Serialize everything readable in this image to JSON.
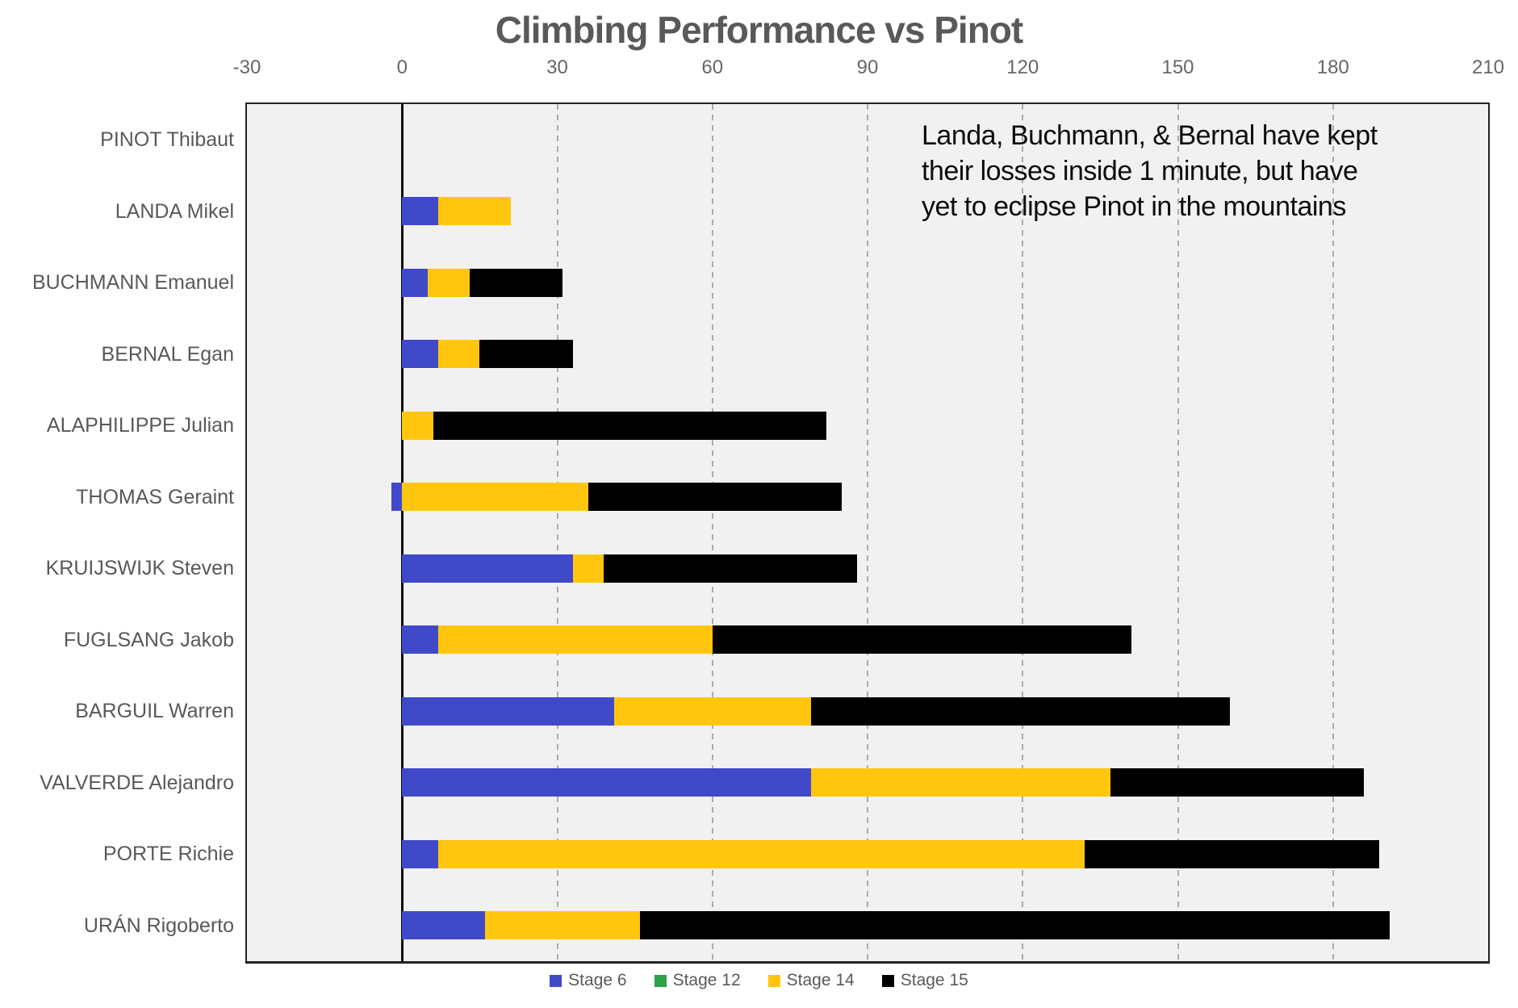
{
  "title": "Climbing Performance vs Pinot",
  "annotation": {
    "lines": [
      "Landa, Buchmann, & Bernal have kept",
      "their losses inside 1 minute, but have",
      "yet to eclipse Pinot in the mountains"
    ]
  },
  "chart_data": {
    "type": "bar",
    "orientation": "horizontal-stacked",
    "title": "Climbing Performance vs Pinot",
    "categories": [
      "PINOT Thibaut",
      "LANDA Mikel",
      "BUCHMANN Emanuel",
      "BERNAL Egan",
      "ALAPHILIPPE Julian",
      "THOMAS Geraint",
      "KRUIJSWIJK Steven",
      "FUGLSANG Jakob",
      "BARGUIL Warren",
      "VALVERDE Alejandro",
      "PORTE Richie",
      "URÁN Rigoberto"
    ],
    "series": [
      {
        "name": "Stage 6",
        "color": "#4049C8",
        "values": [
          0,
          7,
          5,
          7,
          0,
          -2,
          33,
          7,
          41,
          79,
          7,
          16
        ]
      },
      {
        "name": "Stage 12",
        "color": "#2BA148",
        "values": [
          0,
          0,
          0,
          0,
          0,
          0,
          0,
          0,
          0,
          0,
          0,
          0
        ]
      },
      {
        "name": "Stage 14",
        "color": "#FFC60D",
        "values": [
          0,
          14,
          8,
          8,
          6,
          36,
          6,
          53,
          38,
          58,
          125,
          30
        ]
      },
      {
        "name": "Stage 15",
        "color": "#000000",
        "values": [
          0,
          0,
          18,
          18,
          76,
          49,
          49,
          81,
          81,
          49,
          57,
          145
        ]
      }
    ],
    "xlim": [
      -30,
      210
    ],
    "xticks": [
      -30,
      0,
      30,
      60,
      90,
      120,
      150,
      180,
      210
    ],
    "grid": "vertical-dashed",
    "legend_position": "bottom",
    "plot_background": "#F1F1F2",
    "zero_line_color": "#0a0a0a"
  }
}
